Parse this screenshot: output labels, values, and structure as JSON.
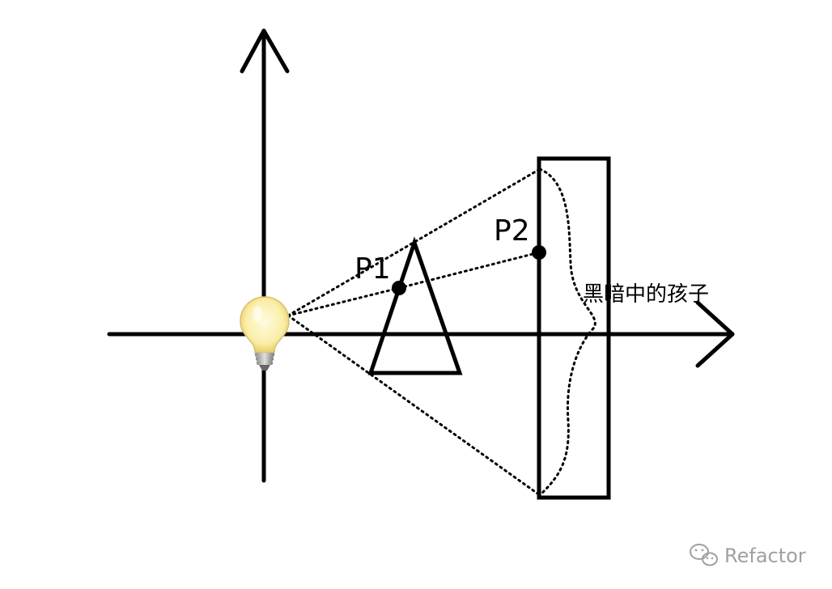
{
  "diagram": {
    "labels": {
      "p1": "P1",
      "p2": "P2",
      "region": "黑暗中的孩子"
    },
    "watermark": {
      "text": "Refactor",
      "icon": "wechat-icon"
    },
    "icons": {
      "light": "light-bulb-icon"
    },
    "colors": {
      "stroke": "#000000",
      "bulb_glass": "#fdf2b8",
      "bulb_base": "#b8b8b8",
      "watermark": "#a0a0a0"
    }
  }
}
